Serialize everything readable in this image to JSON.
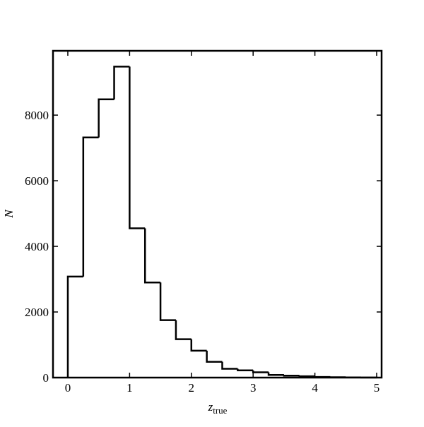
{
  "chart_data": {
    "type": "histogram",
    "xlabel": {
      "text": "z",
      "subscript": "true"
    },
    "ylabel": "N",
    "bins": [
      0,
      0.25,
      0.5,
      0.75,
      1,
      1.25,
      1.5,
      1.75,
      2,
      2.25,
      2.5,
      2.75,
      3,
      3.25,
      3.5,
      3.75,
      4,
      4.25,
      4.5,
      4.75,
      5
    ],
    "counts": [
      3080,
      7320,
      8480,
      9480,
      4550,
      2900,
      1750,
      1170,
      820,
      480,
      270,
      220,
      160,
      80,
      60,
      40,
      20,
      10,
      5,
      3
    ],
    "color": "#000000",
    "xlim": [
      -0.24,
      5.08
    ],
    "ylim": [
      0,
      9960
    ],
    "xticks": [
      0,
      1,
      2,
      3,
      4,
      5
    ],
    "yticks": [
      0,
      2000,
      4000,
      6000,
      8000
    ]
  }
}
